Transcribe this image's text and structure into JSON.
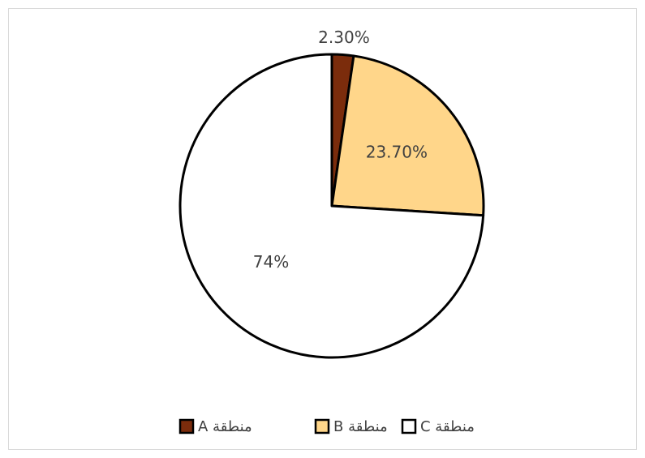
{
  "chart_data": {
    "type": "pie",
    "categories": [
      "منطقة A",
      "منطقة B",
      "منطقة C"
    ],
    "values": [
      2.3,
      23.7,
      74
    ],
    "value_labels": [
      "2.30%",
      "23.70%",
      "74%"
    ],
    "colors": [
      "#7b2c0c",
      "#ffd68a",
      "#ffffff"
    ],
    "legend": "bottom"
  }
}
